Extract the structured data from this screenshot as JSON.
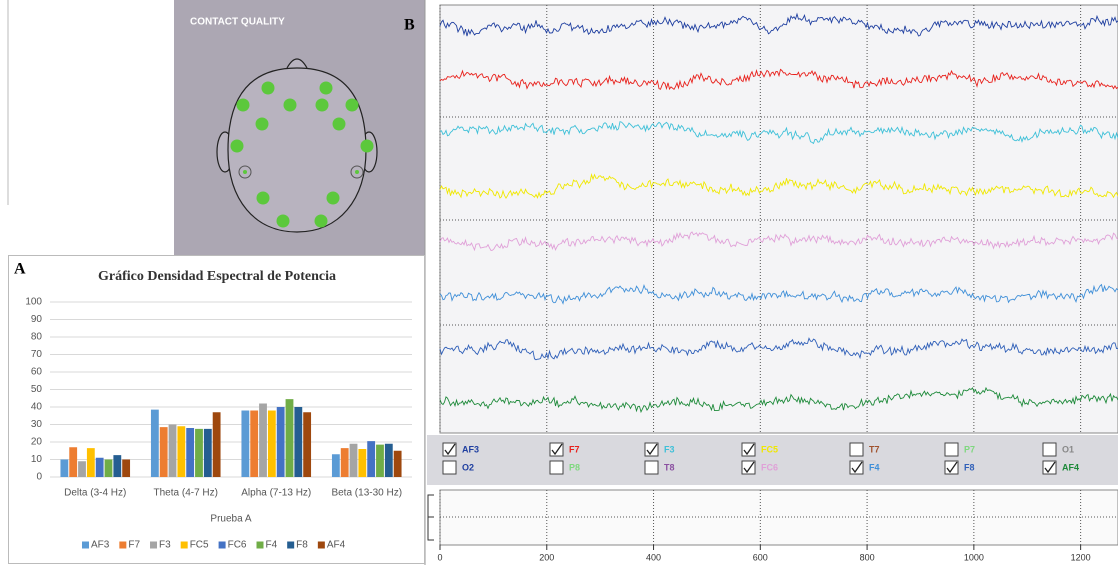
{
  "panel_labels": [
    "A",
    "B"
  ],
  "contact_quality": {
    "title": "CONTACT QUALITY"
  },
  "chart_data": [
    {
      "type": "bar",
      "title": "Gráfico Densidad Espectral de Potencia",
      "categories": [
        "Delta (3-4 Hz)",
        "Theta (4-7 Hz)",
        "Alpha (7-13 Hz)",
        "Beta (13-30 Hz)"
      ],
      "series": [
        {
          "name": "AF3",
          "color": "#5b9bd5",
          "values": [
            10,
            38.5,
            38,
            13
          ]
        },
        {
          "name": "F7",
          "color": "#ed7d31",
          "values": [
            17,
            28.5,
            38,
            16.5
          ]
        },
        {
          "name": "F3",
          "color": "#a5a5a5",
          "values": [
            9,
            30,
            42,
            19
          ]
        },
        {
          "name": "FC5",
          "color": "#ffc000",
          "values": [
            16.5,
            29,
            38,
            16
          ]
        },
        {
          "name": "FC6",
          "color": "#4472c4",
          "values": [
            11,
            28,
            40,
            20.5
          ]
        },
        {
          "name": "F4",
          "color": "#70ad47",
          "values": [
            10,
            27.5,
            44.5,
            18.5
          ]
        },
        {
          "name": "F8",
          "color": "#255e91",
          "values": [
            12.5,
            27.5,
            40,
            19
          ]
        },
        {
          "name": "AF4",
          "color": "#9e480e",
          "values": [
            10,
            37,
            37,
            15
          ]
        }
      ],
      "xlabel": "Prueba A",
      "ylim": [
        0,
        100
      ],
      "yticks": [
        0,
        10,
        20,
        30,
        40,
        50,
        60,
        70,
        80,
        90,
        100
      ],
      "grid": true,
      "legend": "bottom"
    },
    {
      "type": "line",
      "xlim": [
        0,
        1270
      ],
      "xticks": [
        0,
        200,
        400,
        600,
        800,
        1000,
        1200
      ],
      "channels": [
        {
          "name": "AF3",
          "color": "#1f3fa0",
          "checked": true
        },
        {
          "name": "F7",
          "color": "#e8211c",
          "checked": true
        },
        {
          "name": "F3",
          "color": "#3fc0d8",
          "checked": true
        },
        {
          "name": "FC5",
          "color": "#f0e800",
          "checked": true
        },
        {
          "name": "T7",
          "color": "#a0522d",
          "checked": false
        },
        {
          "name": "P7",
          "color": "#7fd87f",
          "checked": false
        },
        {
          "name": "O1",
          "color": "#888888",
          "checked": false
        },
        {
          "name": "O2",
          "color": "#1f3fa0",
          "checked": false
        },
        {
          "name": "P8",
          "color": "#7fd87f",
          "checked": false
        },
        {
          "name": "T8",
          "color": "#8a4fa0",
          "checked": false
        },
        {
          "name": "FC6",
          "color": "#e0a0d8",
          "checked": true
        },
        {
          "name": "F4",
          "color": "#3f8fd8",
          "checked": true
        },
        {
          "name": "F8",
          "color": "#2f5fb8",
          "checked": true
        },
        {
          "name": "AF4",
          "color": "#1e8a3a",
          "checked": true
        }
      ]
    }
  ]
}
